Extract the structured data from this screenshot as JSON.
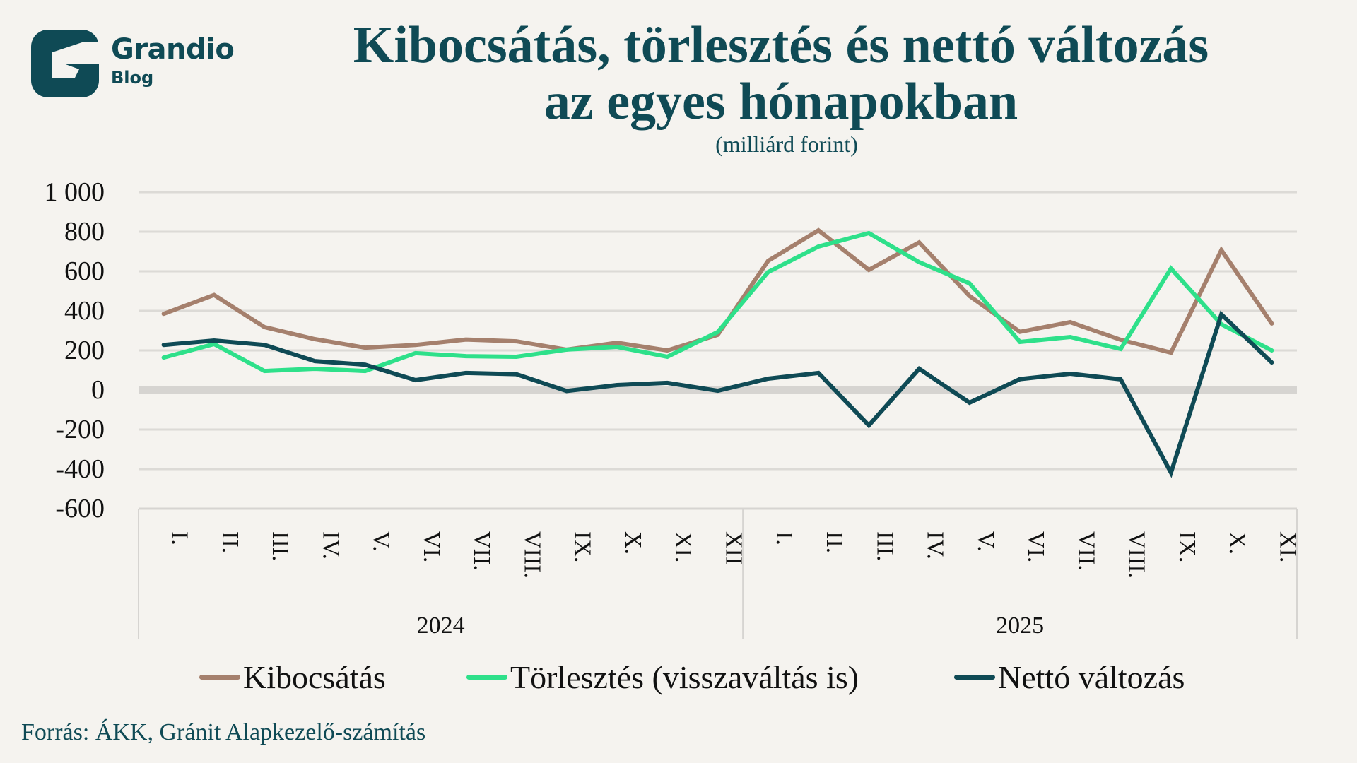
{
  "brand": {
    "name": "Grandio",
    "sub": "Blog",
    "color": "#0f4a55"
  },
  "title_line1": "Kibocsátás, törlesztés és nettó változás",
  "title_line2": "az egyes hónapokban",
  "subtitle": "(milliárd forint)",
  "source": "Forrás: ÁKK, Gránit Alapkezelő-számítás",
  "chart_data": {
    "type": "line",
    "title": "Kibocsátás, törlesztés és nettó változás az egyes hónapokban",
    "subtitle": "(milliárd forint)",
    "xlabel": "",
    "ylabel": "",
    "ylim": [
      -600,
      1000
    ],
    "yticks": [
      1000,
      800,
      600,
      400,
      200,
      0,
      -200,
      -400,
      -600
    ],
    "ytick_labels": [
      "1 000",
      "800",
      "600",
      "400",
      "200",
      "0",
      "-200",
      "-400",
      "-600"
    ],
    "grid": true,
    "legend_position": "bottom",
    "groups": [
      {
        "label": "2024",
        "count": 12
      },
      {
        "label": "2025",
        "count": 11
      }
    ],
    "categories": [
      "I.",
      "II.",
      "III.",
      "IV.",
      "V.",
      "VI.",
      "VII.",
      "VIII.",
      "IX.",
      "X.",
      "XI.",
      "XII",
      "I.",
      "II.",
      "III.",
      "IV.",
      "V.",
      "VI.",
      "VII.",
      "VIII.",
      "IX.",
      "X.",
      "XI."
    ],
    "series": [
      {
        "name": "Kibocsátás",
        "color": "#a5806d",
        "values": [
          385,
          480,
          318,
          257,
          214,
          228,
          255,
          246,
          204,
          239,
          200,
          279,
          653,
          807,
          607,
          746,
          475,
          294,
          343,
          254,
          189,
          707,
          336
        ]
      },
      {
        "name": "Törlesztés (visszaváltás is)",
        "color": "#2ee08a",
        "values": [
          164,
          232,
          96,
          107,
          96,
          186,
          171,
          168,
          204,
          218,
          168,
          293,
          596,
          725,
          793,
          646,
          539,
          243,
          268,
          207,
          614,
          332,
          200
        ]
      },
      {
        "name": "Nettó változás",
        "color": "#0f4a55",
        "values": [
          228,
          250,
          228,
          146,
          128,
          50,
          86,
          80,
          -5,
          25,
          36,
          -4,
          57,
          86,
          -179,
          107,
          -64,
          55,
          82,
          54,
          -418,
          382,
          139
        ]
      }
    ]
  }
}
